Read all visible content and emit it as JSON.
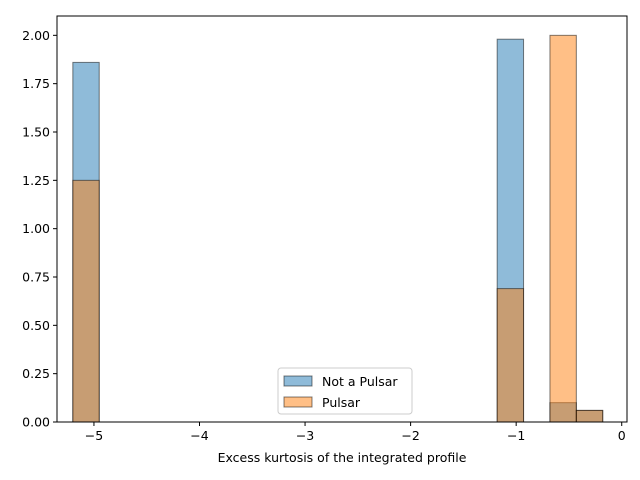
{
  "chart_data": {
    "type": "bar",
    "title": "",
    "xlabel": "Excess kurtosis of the integrated profile",
    "ylabel": "",
    "xlim": [
      -5.35,
      0.05
    ],
    "ylim": [
      0,
      2.1
    ],
    "x_ticks": [
      -5,
      -4,
      -3,
      -2,
      -1,
      0
    ],
    "x_tick_labels": [
      "−5",
      "−4",
      "−3",
      "−2",
      "−1",
      "0"
    ],
    "y_ticks": [
      0,
      0.25,
      0.5,
      0.75,
      1.0,
      1.25,
      1.5,
      1.75,
      2.0
    ],
    "y_tick_labels": [
      "0.00",
      "0.25",
      "0.50",
      "0.75",
      "1.00",
      "1.25",
      "1.50",
      "1.75",
      "2.00"
    ],
    "grid": false,
    "legend_position": "lower center",
    "bar_opacity": 0.5,
    "series": [
      {
        "name": "Not a Pulsar",
        "color": "#1f77b4",
        "bins": [
          {
            "x0": -5.2,
            "x1": -4.95,
            "value": 1.86
          },
          {
            "x0": -1.18,
            "x1": -0.93,
            "value": 1.98
          },
          {
            "x0": -0.68,
            "x1": -0.43,
            "value": 0.1
          },
          {
            "x0": -0.43,
            "x1": -0.18,
            "value": 0.06
          }
        ]
      },
      {
        "name": "Pulsar",
        "color": "#ff7f0e",
        "bins": [
          {
            "x0": -5.2,
            "x1": -4.95,
            "value": 1.25
          },
          {
            "x0": -1.18,
            "x1": -0.93,
            "value": 0.69
          },
          {
            "x0": -0.68,
            "x1": -0.43,
            "value": 2.0
          },
          {
            "x0": -0.43,
            "x1": -0.18,
            "value": 0.06
          }
        ]
      }
    ]
  }
}
